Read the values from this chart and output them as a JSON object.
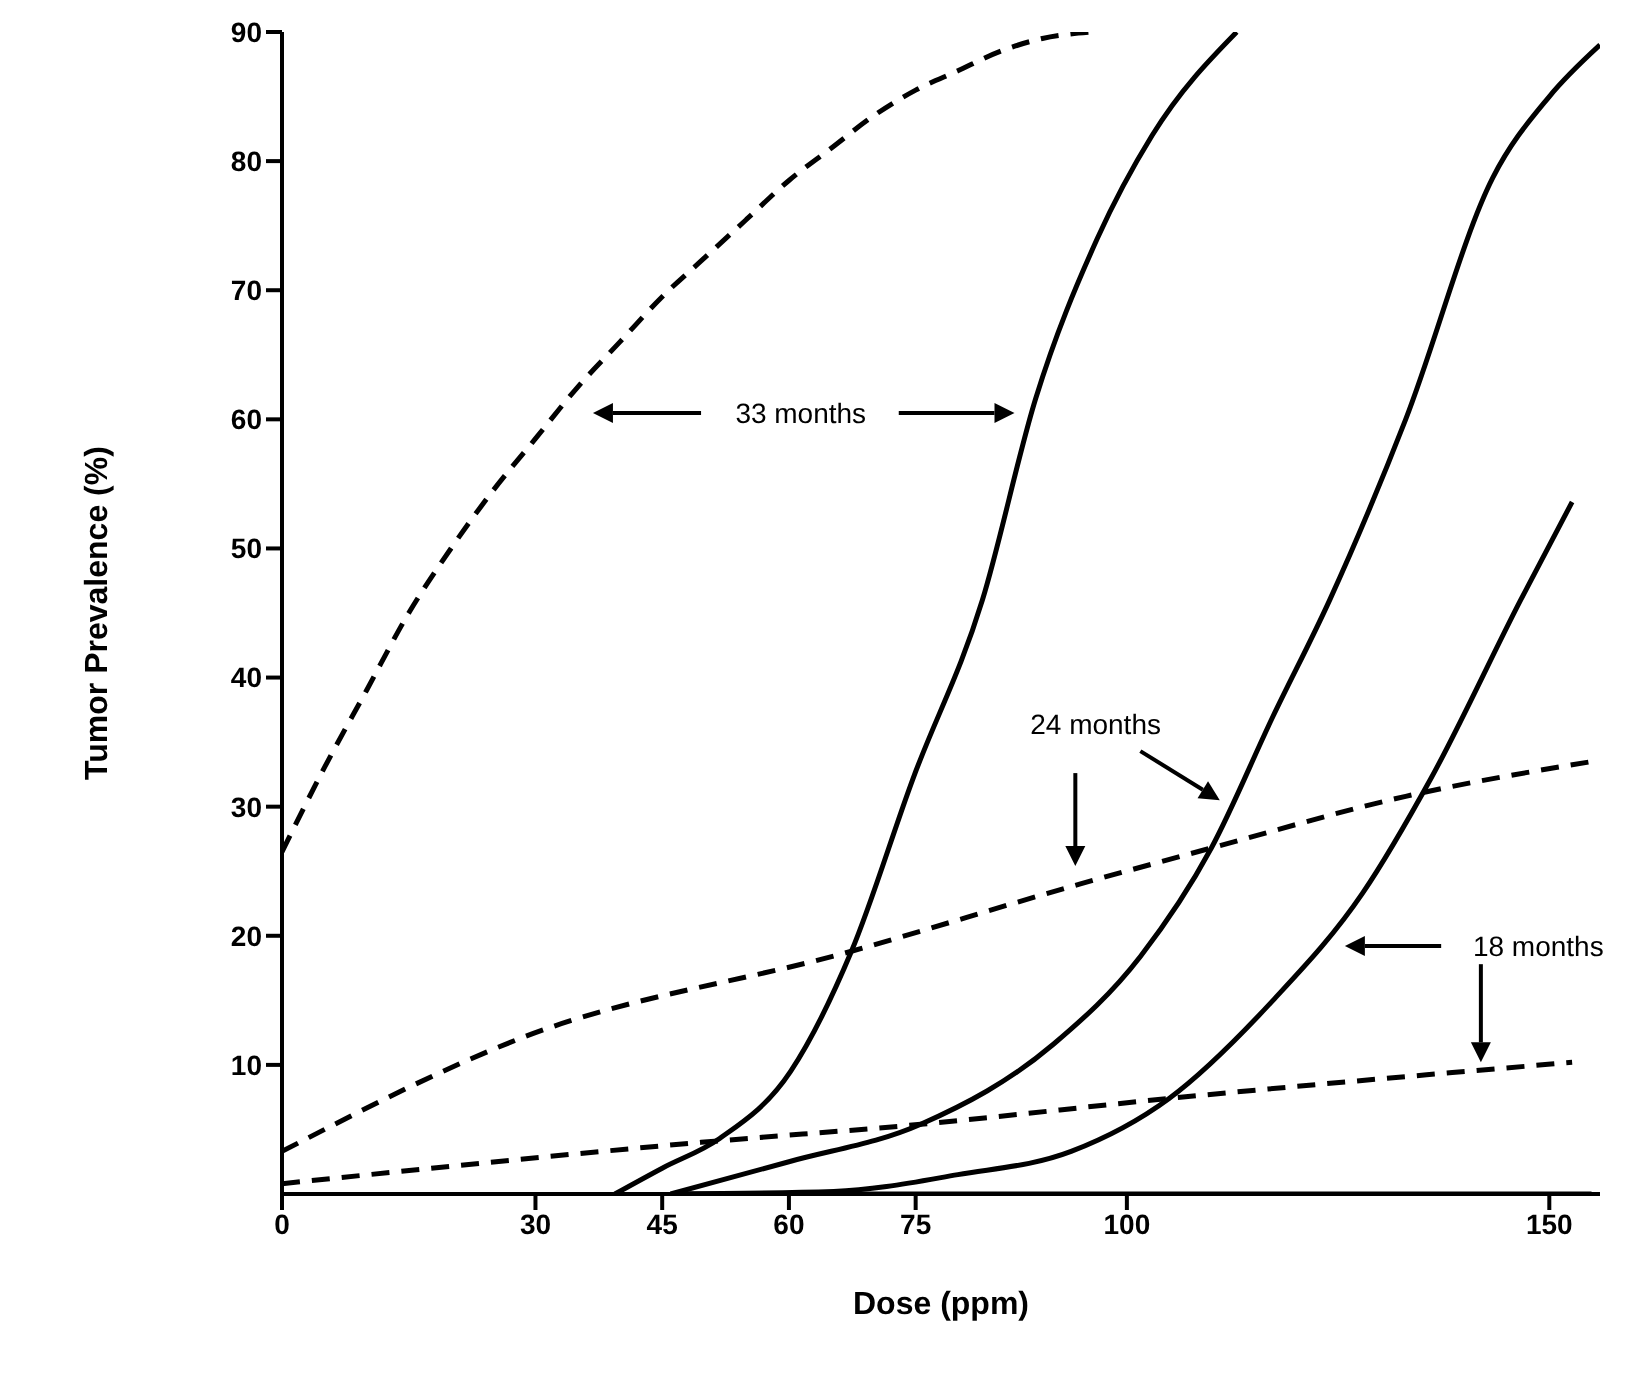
{
  "chart_data": {
    "type": "line",
    "xlabel": "Dose (ppm)",
    "ylabel": "Tumor Prevalence (%)",
    "xlim": [
      0,
      156
    ],
    "ylim": [
      0,
      90
    ],
    "xticks": [
      0,
      30,
      45,
      60,
      75,
      100,
      150
    ],
    "yticks": [
      10,
      20,
      30,
      40,
      50,
      60,
      70,
      80,
      90
    ],
    "grid": false,
    "legend": false,
    "marker": "none",
    "series": [
      {
        "color": "#000000",
        "line_style": "dashed",
        "x": [
          0,
          5,
          10,
          15,
          20,
          25,
          30,
          35,
          40,
          45,
          50,
          55,
          60,
          65,
          70,
          75,
          80,
          85,
          90,
          96
        ],
        "values": [
          26.5,
          33,
          39,
          45,
          50,
          54.5,
          58.5,
          62.5,
          66,
          69.5,
          72.5,
          75.5,
          78.5,
          81,
          83.5,
          85.5,
          87,
          88.5,
          89.5,
          90
        ]
      },
      {
        "color": "#000000",
        "line_style": "solid",
        "x": [
          39.4,
          45,
          51.8,
          60.2,
          67.4,
          74.7,
          82.9,
          89.2,
          96.5,
          103,
          113
        ],
        "values": [
          0,
          2,
          4.3,
          9.5,
          18.8,
          32.2,
          46,
          61.6,
          74,
          82,
          90
        ]
      },
      {
        "color": "#000000",
        "line_style": "solid",
        "x": [
          46,
          60,
          75.6,
          91.3,
          101.6,
          110,
          117.3,
          124,
          133,
          143.3,
          150,
          156
        ],
        "values": [
          0,
          2.5,
          5.4,
          11.6,
          18.4,
          26.8,
          37,
          46,
          60,
          78.7,
          85,
          89
        ]
      },
      {
        "color": "#000000",
        "line_style": "solid",
        "x": [
          46.5,
          65.3,
          80,
          93.4,
          105,
          117.3,
          127.9,
          136,
          146.6,
          152.7
        ],
        "values": [
          0,
          0.2,
          1.5,
          3.3,
          7.4,
          15,
          23.3,
          32.2,
          46,
          53.6
        ]
      },
      {
        "color": "#000000",
        "line_style": "solid",
        "x": [
          46.5,
          100,
          155
        ],
        "values": [
          0,
          0,
          0
        ]
      },
      {
        "color": "#000000",
        "line_style": "dashed",
        "x": [
          0,
          28.8,
          67.4,
          94.4,
          110,
          133,
          156
        ],
        "values": [
          3.3,
          12.2,
          18.8,
          24,
          26.8,
          30.8,
          33.6
        ]
      },
      {
        "color": "#000000",
        "line_style": "dashed",
        "x": [
          0,
          49.6,
          75.6,
          105,
          152.7
        ],
        "values": [
          0.8,
          4,
          5.4,
          7.4,
          10.2
        ]
      }
    ],
    "annotations": [
      "33 months",
      "24 months",
      "18 months"
    ]
  }
}
